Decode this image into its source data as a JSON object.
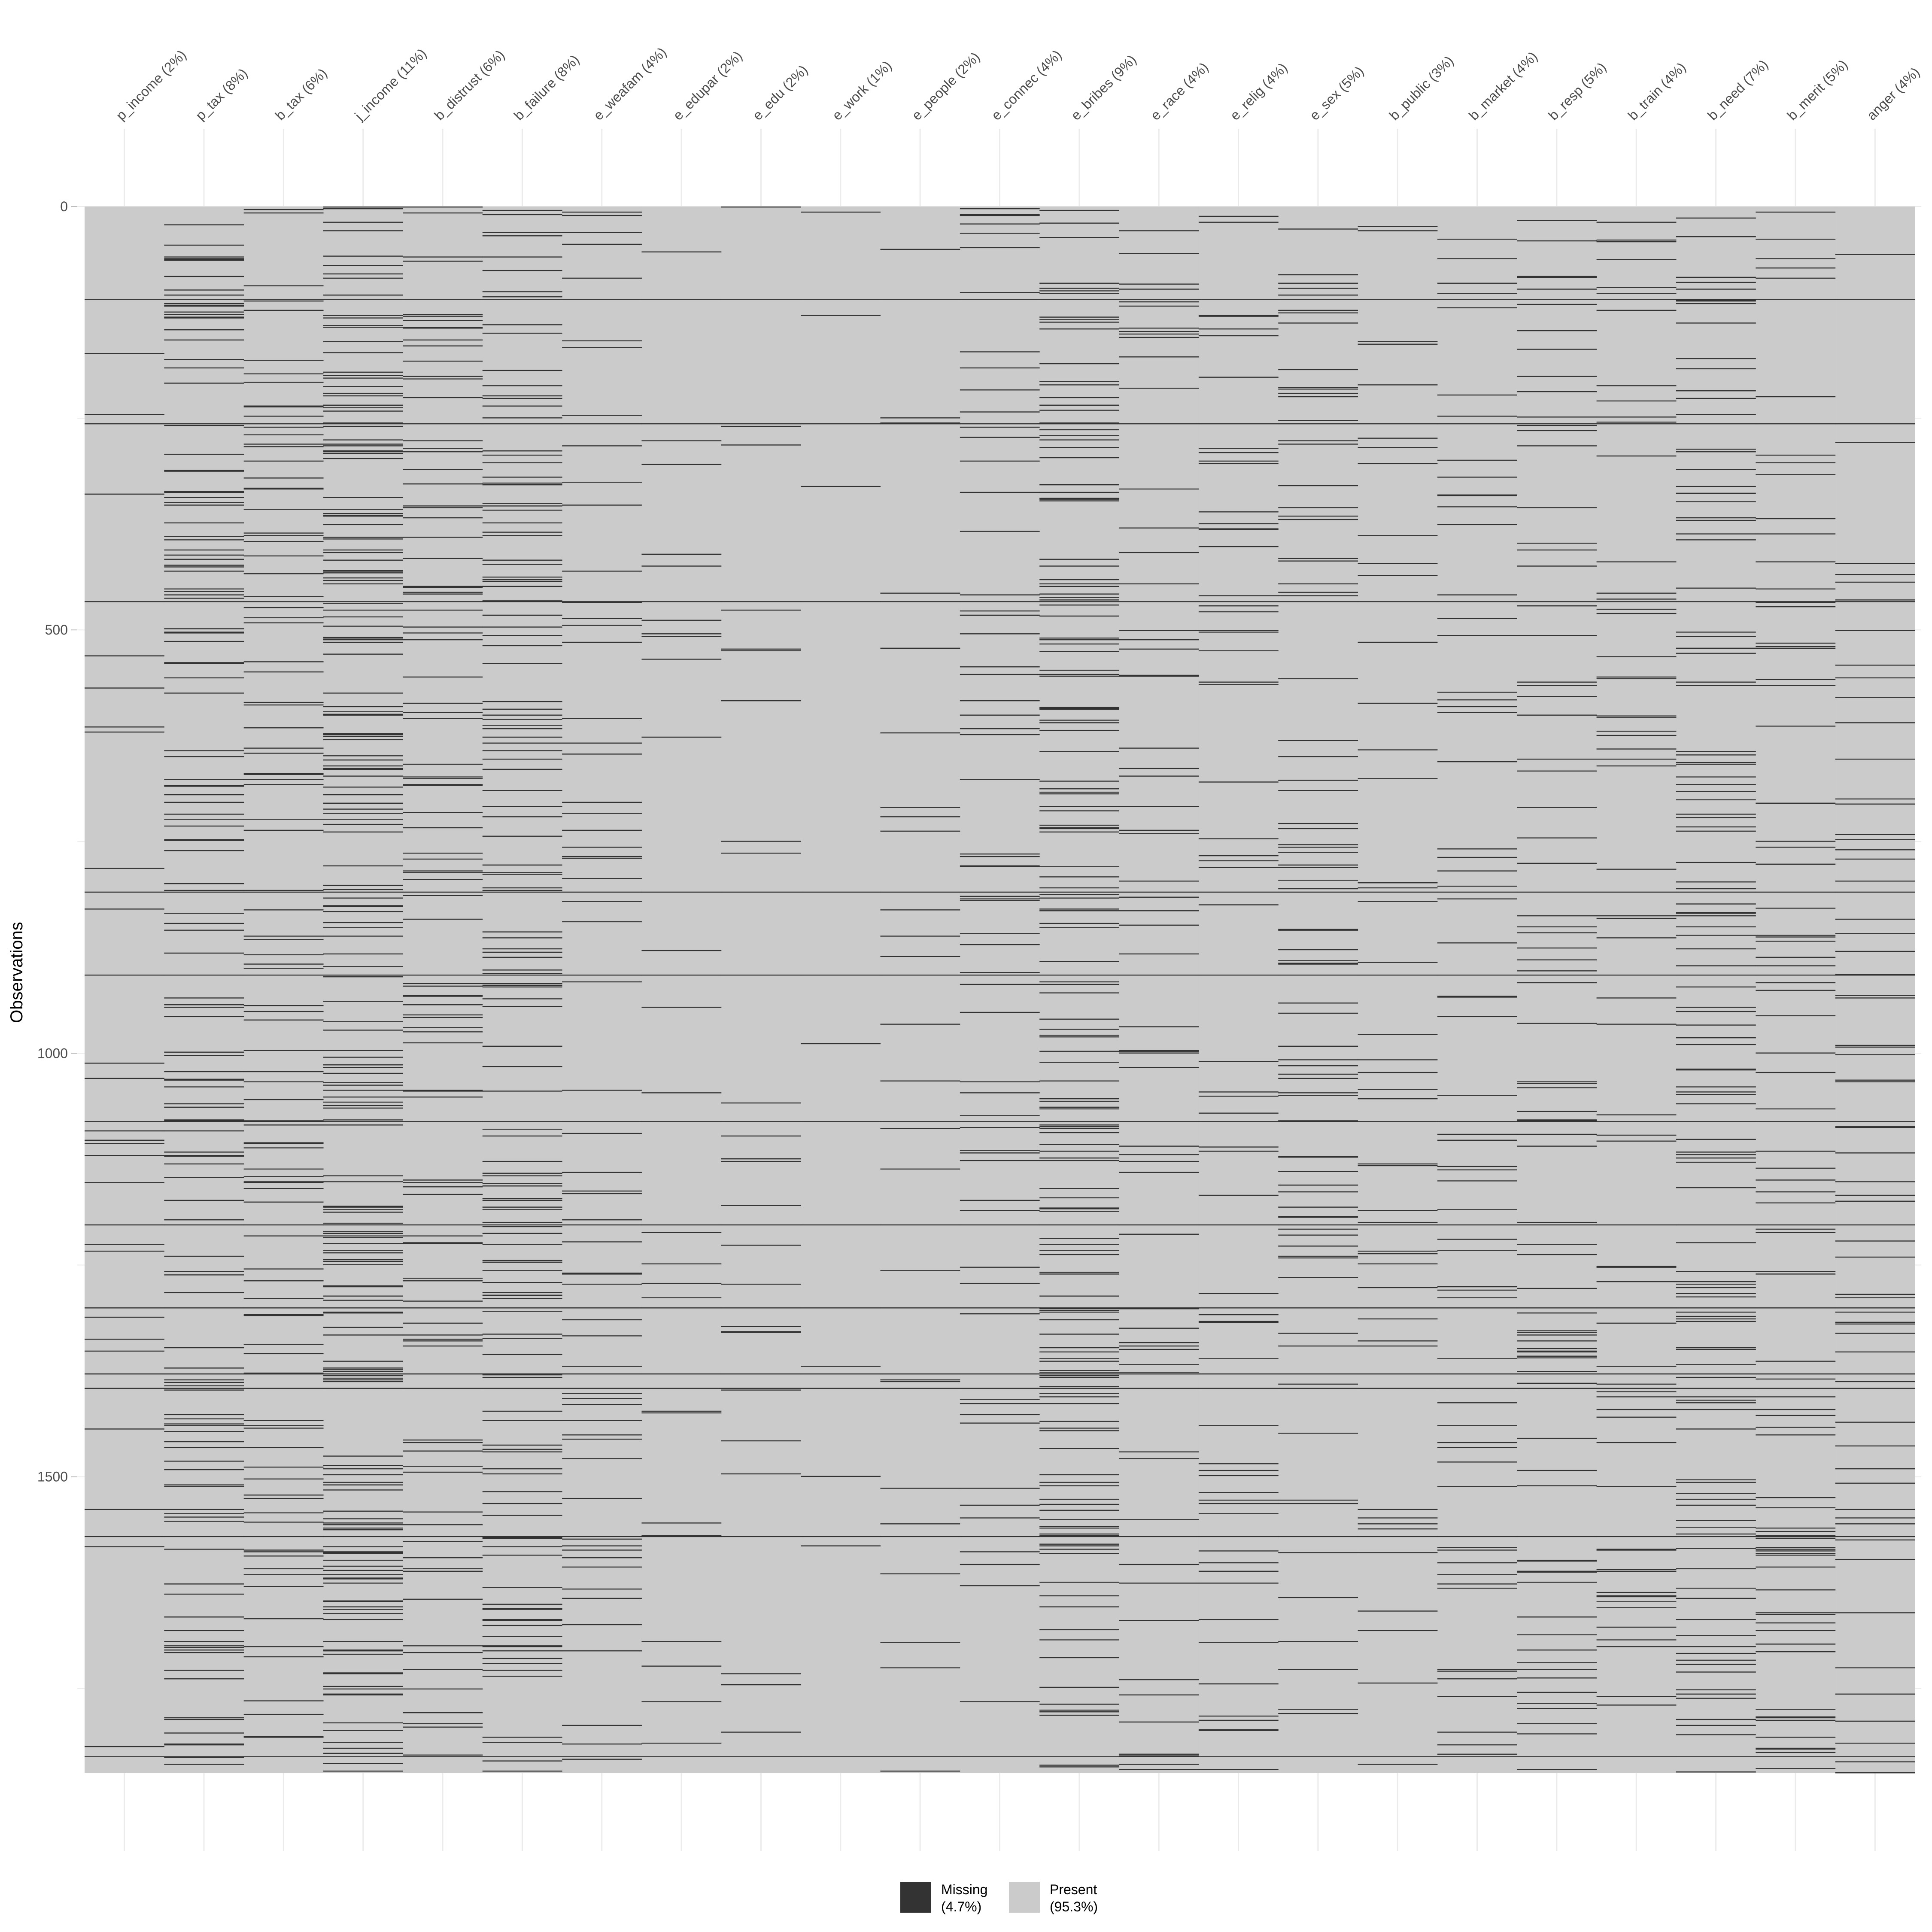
{
  "chart_data": {
    "type": "heatmap",
    "title": "",
    "xlabel": "",
    "ylabel": "Observations",
    "n_observations": 1850,
    "ylim": [
      0,
      1850
    ],
    "y_ticks": [
      0,
      500,
      1000,
      1500
    ],
    "grid": true,
    "legend_position": "bottom",
    "colors": {
      "missing": "#333333",
      "present": "#cbcbcb",
      "grid": "#ebebeb",
      "background": "#ffffff"
    },
    "columns": [
      {
        "label": "p_income (2%)",
        "missing_pct": 2
      },
      {
        "label": "p_tax (8%)",
        "missing_pct": 8
      },
      {
        "label": "b_tax (6%)",
        "missing_pct": 6
      },
      {
        "label": "j_income (11%)",
        "missing_pct": 11
      },
      {
        "label": "b_distrust (6%)",
        "missing_pct": 6
      },
      {
        "label": "b_failure (8%)",
        "missing_pct": 8
      },
      {
        "label": "e_weafam (4%)",
        "missing_pct": 4
      },
      {
        "label": "e_edupar (2%)",
        "missing_pct": 2
      },
      {
        "label": "e_edu (2%)",
        "missing_pct": 2
      },
      {
        "label": "e_work (1%)",
        "missing_pct": 1
      },
      {
        "label": "e_people (2%)",
        "missing_pct": 2
      },
      {
        "label": "e_connec (4%)",
        "missing_pct": 4
      },
      {
        "label": "e_bribes (9%)",
        "missing_pct": 9
      },
      {
        "label": "e_race (4%)",
        "missing_pct": 4
      },
      {
        "label": "e_relig (4%)",
        "missing_pct": 4
      },
      {
        "label": "e_sex (5%)",
        "missing_pct": 5
      },
      {
        "label": "b_public (3%)",
        "missing_pct": 3
      },
      {
        "label": "b_market (4%)",
        "missing_pct": 4
      },
      {
        "label": "b_resp (5%)",
        "missing_pct": 5
      },
      {
        "label": "b_train (4%)",
        "missing_pct": 4
      },
      {
        "label": "b_need (7%)",
        "missing_pct": 7
      },
      {
        "label": "b_merit (5%)",
        "missing_pct": 5
      },
      {
        "label": "anger (4%)",
        "missing_pct": 4
      }
    ],
    "shared_missing_rows": [
      109,
      256,
      466,
      809,
      907,
      1080,
      1202,
      1300,
      1378,
      1395,
      1570,
      1830
    ],
    "legend": [
      {
        "key": "missing",
        "label_line1": "Missing",
        "label_line2": "(4.7%)",
        "pct": 4.7
      },
      {
        "key": "present",
        "label_line1": "Present",
        "label_line2": "(95.3%)",
        "pct": 95.3
      }
    ]
  }
}
